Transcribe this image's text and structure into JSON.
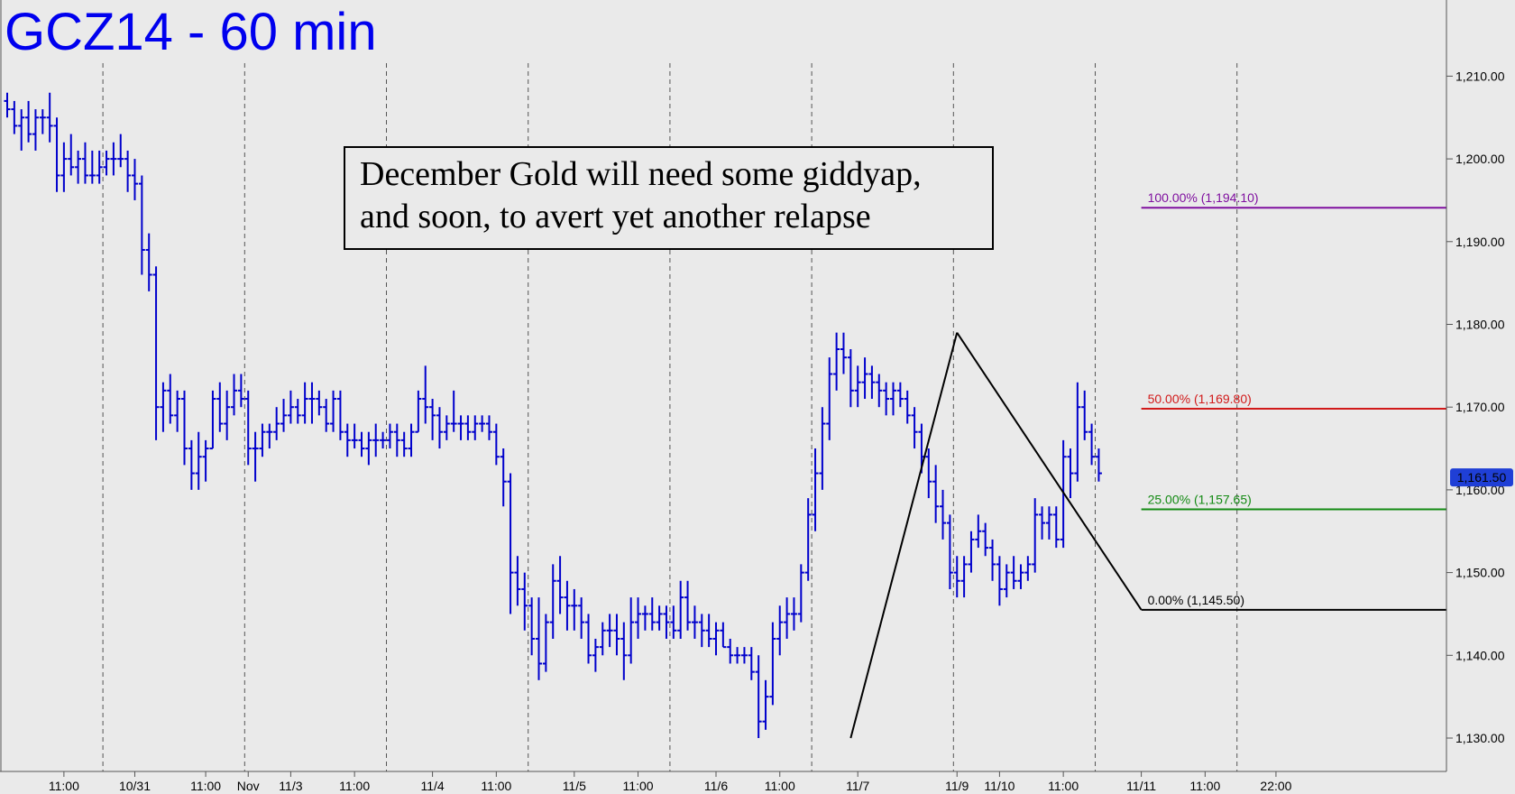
{
  "colors": {
    "background": "#eaeaea",
    "price": "#0000cc",
    "title": "#0000ee",
    "fib_100": "#7f0f9f",
    "fib_50": "#d11a1a",
    "fib_25": "#138a13",
    "fib_0": "#000000",
    "current_badge": "#1f3fd6",
    "axis_line": "#555555",
    "separator": "#555555"
  },
  "chart_data": {
    "type": "ohlc",
    "title": "GCZ14 - 60 min",
    "annotation": [
      "December Gold will need some giddyap,",
      "and soon, to avert yet another relapse"
    ],
    "ylim": [
      1126,
      1214
    ],
    "y_ticks": [
      1130,
      1140,
      1150,
      1160,
      1170,
      1180,
      1190,
      1200,
      1210
    ],
    "y_tick_labels": [
      "1,130.00",
      "1,140.00",
      "1,150.00",
      "1,160.00",
      "1,170.00",
      "1,180.00",
      "1,190.00",
      "1,200.00",
      "1,210.00"
    ],
    "x_range": [
      0,
      203
    ],
    "x_ticks": [
      {
        "x": 8,
        "label": "11:00"
      },
      {
        "x": 18,
        "label": "10/31"
      },
      {
        "x": 28,
        "label": "11:00"
      },
      {
        "x": 34,
        "label": "Nov"
      },
      {
        "x": 40,
        "label": "11/3"
      },
      {
        "x": 49,
        "label": "11:00"
      },
      {
        "x": 60,
        "label": "11/4"
      },
      {
        "x": 69,
        "label": "11:00"
      },
      {
        "x": 80,
        "label": "11/5"
      },
      {
        "x": 89,
        "label": "11:00"
      },
      {
        "x": 100,
        "label": "11/6"
      },
      {
        "x": 109,
        "label": "11:00"
      },
      {
        "x": 120,
        "label": "11/7"
      },
      {
        "x": 134,
        "label": "11/9"
      },
      {
        "x": 140,
        "label": "11/10"
      },
      {
        "x": 149,
        "label": "11:00"
      },
      {
        "x": 160,
        "label": "11/11"
      },
      {
        "x": 169,
        "label": "11:00"
      },
      {
        "x": 179,
        "label": "22:00"
      }
    ],
    "session_separators": [
      14,
      34,
      54,
      74,
      94,
      114,
      134,
      154,
      174
    ],
    "bars": [
      [
        1207,
        1208,
        1205,
        1206
      ],
      [
        1206,
        1207,
        1203,
        1204
      ],
      [
        1204,
        1206,
        1201,
        1205
      ],
      [
        1205,
        1207,
        1202,
        1203
      ],
      [
        1203,
        1206,
        1201,
        1205
      ],
      [
        1205,
        1206,
        1203,
        1205
      ],
      [
        1205,
        1208,
        1202,
        1204
      ],
      [
        1204,
        1205,
        1196,
        1198
      ],
      [
        1198,
        1202,
        1196,
        1200
      ],
      [
        1200,
        1203,
        1198,
        1199
      ],
      [
        1199,
        1201,
        1197,
        1200
      ],
      [
        1200,
        1202,
        1197,
        1198
      ],
      [
        1198,
        1201,
        1197,
        1198
      ],
      [
        1198,
        1201,
        1197,
        1199
      ],
      [
        1199,
        1201,
        1198,
        1200
      ],
      [
        1200,
        1202,
        1198,
        1200
      ],
      [
        1200,
        1203,
        1199,
        1200
      ],
      [
        1200,
        1201,
        1196,
        1198
      ],
      [
        1198,
        1200,
        1195,
        1197
      ],
      [
        1197,
        1198,
        1186,
        1189
      ],
      [
        1189,
        1191,
        1184,
        1186
      ],
      [
        1186,
        1187,
        1166,
        1170
      ],
      [
        1170,
        1173,
        1167,
        1172
      ],
      [
        1172,
        1174,
        1168,
        1169
      ],
      [
        1169,
        1172,
        1167,
        1171
      ],
      [
        1171,
        1172,
        1163,
        1165
      ],
      [
        1165,
        1166,
        1160,
        1162
      ],
      [
        1162,
        1167,
        1160,
        1164
      ],
      [
        1164,
        1166,
        1161,
        1165
      ],
      [
        1165,
        1172,
        1165,
        1171
      ],
      [
        1171,
        1173,
        1167,
        1168
      ],
      [
        1168,
        1172,
        1166,
        1170
      ],
      [
        1170,
        1174,
        1169,
        1172
      ],
      [
        1172,
        1174,
        1170,
        1171
      ],
      [
        1171,
        1172,
        1163,
        1165
      ],
      [
        1165,
        1167,
        1161,
        1165
      ],
      [
        1165,
        1168,
        1164,
        1167
      ],
      [
        1167,
        1168,
        1165,
        1167
      ],
      [
        1167,
        1170,
        1166,
        1168
      ],
      [
        1168,
        1171,
        1167,
        1169
      ],
      [
        1169,
        1172,
        1168,
        1170
      ],
      [
        1170,
        1171,
        1168,
        1169
      ],
      [
        1169,
        1173,
        1168,
        1171
      ],
      [
        1171,
        1173,
        1168,
        1171
      ],
      [
        1171,
        1172,
        1169,
        1170
      ],
      [
        1170,
        1171,
        1167,
        1168
      ],
      [
        1168,
        1172,
        1167,
        1171
      ],
      [
        1171,
        1172,
        1166,
        1167
      ],
      [
        1167,
        1168,
        1164,
        1166
      ],
      [
        1166,
        1168,
        1165,
        1166
      ],
      [
        1166,
        1167,
        1164,
        1165
      ],
      [
        1165,
        1167,
        1163,
        1166
      ],
      [
        1166,
        1168,
        1164,
        1166
      ],
      [
        1166,
        1167,
        1165,
        1166
      ],
      [
        1166,
        1168,
        1165,
        1167
      ],
      [
        1167,
        1168,
        1164,
        1166
      ],
      [
        1166,
        1167,
        1164,
        1165
      ],
      [
        1165,
        1168,
        1164,
        1167
      ],
      [
        1167,
        1172,
        1167,
        1171
      ],
      [
        1171,
        1175,
        1168,
        1170
      ],
      [
        1170,
        1171,
        1166,
        1169
      ],
      [
        1169,
        1170,
        1165,
        1167
      ],
      [
        1167,
        1169,
        1166,
        1168
      ],
      [
        1168,
        1172,
        1167,
        1168
      ],
      [
        1168,
        1169,
        1166,
        1168
      ],
      [
        1168,
        1169,
        1166,
        1167
      ],
      [
        1167,
        1169,
        1166,
        1168
      ],
      [
        1168,
        1169,
        1167,
        1168
      ],
      [
        1168,
        1169,
        1166,
        1167
      ],
      [
        1167,
        1168,
        1163,
        1164
      ],
      [
        1164,
        1165,
        1158,
        1161
      ],
      [
        1161,
        1162,
        1145,
        1150
      ],
      [
        1150,
        1152,
        1146,
        1148
      ],
      [
        1148,
        1150,
        1143,
        1146
      ],
      [
        1146,
        1147,
        1140,
        1142
      ],
      [
        1142,
        1147,
        1137,
        1139
      ],
      [
        1139,
        1145,
        1138,
        1144
      ],
      [
        1144,
        1151,
        1142,
        1149
      ],
      [
        1149,
        1152,
        1145,
        1147
      ],
      [
        1147,
        1149,
        1143,
        1146
      ],
      [
        1146,
        1148,
        1143,
        1146
      ],
      [
        1146,
        1147,
        1142,
        1144
      ],
      [
        1144,
        1145,
        1139,
        1140
      ],
      [
        1140,
        1142,
        1138,
        1141
      ],
      [
        1141,
        1144,
        1140,
        1143
      ],
      [
        1143,
        1145,
        1141,
        1143
      ],
      [
        1143,
        1145,
        1140,
        1142
      ],
      [
        1142,
        1144,
        1137,
        1140
      ],
      [
        1140,
        1147,
        1139,
        1144
      ],
      [
        1144,
        1147,
        1142,
        1145
      ],
      [
        1145,
        1146,
        1143,
        1145
      ],
      [
        1145,
        1147,
        1143,
        1144
      ],
      [
        1144,
        1146,
        1143,
        1145
      ],
      [
        1145,
        1146,
        1142,
        1144
      ],
      [
        1144,
        1146,
        1142,
        1143
      ],
      [
        1143,
        1149,
        1142,
        1147
      ],
      [
        1147,
        1149,
        1143,
        1144
      ],
      [
        1144,
        1146,
        1142,
        1144
      ],
      [
        1144,
        1145,
        1141,
        1143
      ],
      [
        1143,
        1145,
        1141,
        1142
      ],
      [
        1142,
        1144,
        1140,
        1143
      ],
      [
        1143,
        1144,
        1141,
        1141
      ],
      [
        1141,
        1142,
        1139,
        1140
      ],
      [
        1140,
        1141,
        1139,
        1140
      ],
      [
        1140,
        1141,
        1139,
        1140
      ],
      [
        1140,
        1141,
        1137,
        1138
      ],
      [
        1138,
        1140,
        1130,
        1132
      ],
      [
        1132,
        1137,
        1131,
        1135
      ],
      [
        1135,
        1144,
        1134,
        1142
      ],
      [
        1142,
        1146,
        1140,
        1144
      ],
      [
        1144,
        1147,
        1142,
        1145
      ],
      [
        1145,
        1147,
        1143,
        1145
      ],
      [
        1145,
        1151,
        1144,
        1150
      ],
      [
        1150,
        1159,
        1149,
        1157
      ],
      [
        1157,
        1165,
        1155,
        1162
      ],
      [
        1162,
        1170,
        1160,
        1168
      ],
      [
        1168,
        1176,
        1166,
        1174
      ],
      [
        1174,
        1179,
        1172,
        1177
      ],
      [
        1177,
        1179,
        1174,
        1176
      ],
      [
        1176,
        1177,
        1170,
        1172
      ],
      [
        1172,
        1175,
        1170,
        1173
      ],
      [
        1173,
        1176,
        1171,
        1174
      ],
      [
        1174,
        1175,
        1171,
        1173
      ],
      [
        1173,
        1174,
        1170,
        1172
      ],
      [
        1172,
        1173,
        1169,
        1171
      ],
      [
        1171,
        1173,
        1169,
        1172
      ],
      [
        1172,
        1173,
        1170,
        1171
      ],
      [
        1171,
        1172,
        1168,
        1169
      ],
      [
        1169,
        1170,
        1165,
        1167
      ],
      [
        1167,
        1168,
        1162,
        1164
      ],
      [
        1164,
        1165,
        1159,
        1161
      ],
      [
        1161,
        1163,
        1156,
        1158
      ],
      [
        1158,
        1160,
        1154,
        1156
      ],
      [
        1156,
        1157,
        1148,
        1150
      ],
      [
        1150,
        1152,
        1147,
        1149
      ],
      [
        1149,
        1152,
        1147,
        1151
      ],
      [
        1151,
        1155,
        1150,
        1154
      ],
      [
        1154,
        1157,
        1153,
        1155
      ],
      [
        1155,
        1156,
        1152,
        1153
      ],
      [
        1153,
        1154,
        1149,
        1151
      ],
      [
        1151,
        1152,
        1146,
        1148
      ],
      [
        1148,
        1151,
        1147,
        1150
      ],
      [
        1150,
        1152,
        1148,
        1149
      ],
      [
        1149,
        1151,
        1148,
        1150
      ],
      [
        1150,
        1152,
        1149,
        1151
      ],
      [
        1151,
        1159,
        1150,
        1157
      ],
      [
        1157,
        1158,
        1154,
        1156
      ],
      [
        1156,
        1158,
        1154,
        1157
      ],
      [
        1157,
        1158,
        1153,
        1154
      ],
      [
        1154,
        1166,
        1153,
        1164
      ],
      [
        1164,
        1165,
        1159,
        1162
      ],
      [
        1162,
        1173,
        1161,
        1170
      ],
      [
        1170,
        1172,
        1166,
        1167
      ],
      [
        1167,
        1168,
        1163,
        1164
      ],
      [
        1164,
        1165,
        1161,
        1162
      ]
    ],
    "fib_levels": [
      {
        "label": "100.00% (1,194.10)",
        "value": 1194.1,
        "color_key": "fib_100"
      },
      {
        "label": "50.00% (1,169.80)",
        "value": 1169.8,
        "color_key": "fib_50"
      },
      {
        "label": "25.00% (1,157.65)",
        "value": 1157.65,
        "color_key": "fib_25"
      },
      {
        "label": "0.00% (1,145.50)",
        "value": 1145.5,
        "color_key": "fib_0"
      }
    ],
    "fib_x_start": 160,
    "trend_lines": [
      {
        "from": [
          119,
          1130
        ],
        "to": [
          134,
          1179
        ]
      },
      {
        "from": [
          134,
          1179
        ],
        "to": [
          160,
          1145.5
        ]
      }
    ],
    "current_price": {
      "label": "1,161.50",
      "value": 1161.5
    }
  }
}
